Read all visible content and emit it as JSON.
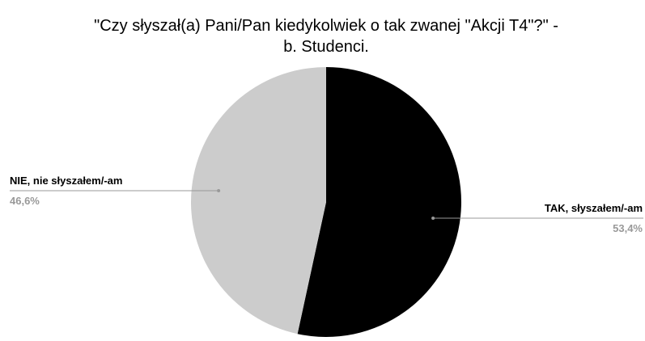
{
  "chart_data": {
    "type": "pie",
    "title": [
      "\"Czy słyszał(a) Pani/Pan kiedykolwiek o tak zwanej \"Akcji T4\"?\" -",
      "b. Studenci."
    ],
    "categories": [
      "TAK, słyszałem/-am",
      "NIE, nie słyszałem/-am"
    ],
    "values": [
      53.4,
      46.6
    ],
    "value_labels": [
      "53,4%",
      "46,6%"
    ],
    "colors": [
      "#000000",
      "#cccccc"
    ]
  }
}
